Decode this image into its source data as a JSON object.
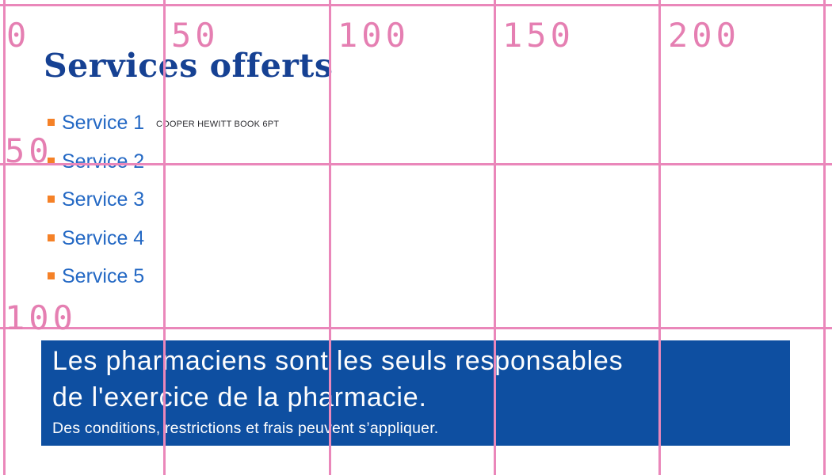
{
  "ruler": {
    "top_labels": [
      "0",
      "50",
      "100",
      "150",
      "200"
    ],
    "left_labels": [
      "50",
      "100"
    ]
  },
  "main": {
    "title": "Services offerts",
    "font_annotation": "COOPER HEWITT BOOK 6PT",
    "services": [
      "Service 1",
      "Service 2",
      "Service 3",
      "Service 4",
      "Service 5"
    ]
  },
  "banner": {
    "heading_line1": "Les pharmaciens sont les seuls responsables",
    "heading_line2": "de l'exercice de la pharmacie.",
    "disclaimer": "Des conditions, restrictions et frais peuvent s’appliquer."
  },
  "colors": {
    "grid_pink": "#ea87ba",
    "ruler_pink": "#e57fb2",
    "title_navy": "#164193",
    "service_blue": "#2368c4",
    "bullet_orange": "#f58127",
    "annotation_dark": "#2b2b30",
    "banner_background": "#0e4fa1",
    "banner_text": "#ffffff"
  }
}
